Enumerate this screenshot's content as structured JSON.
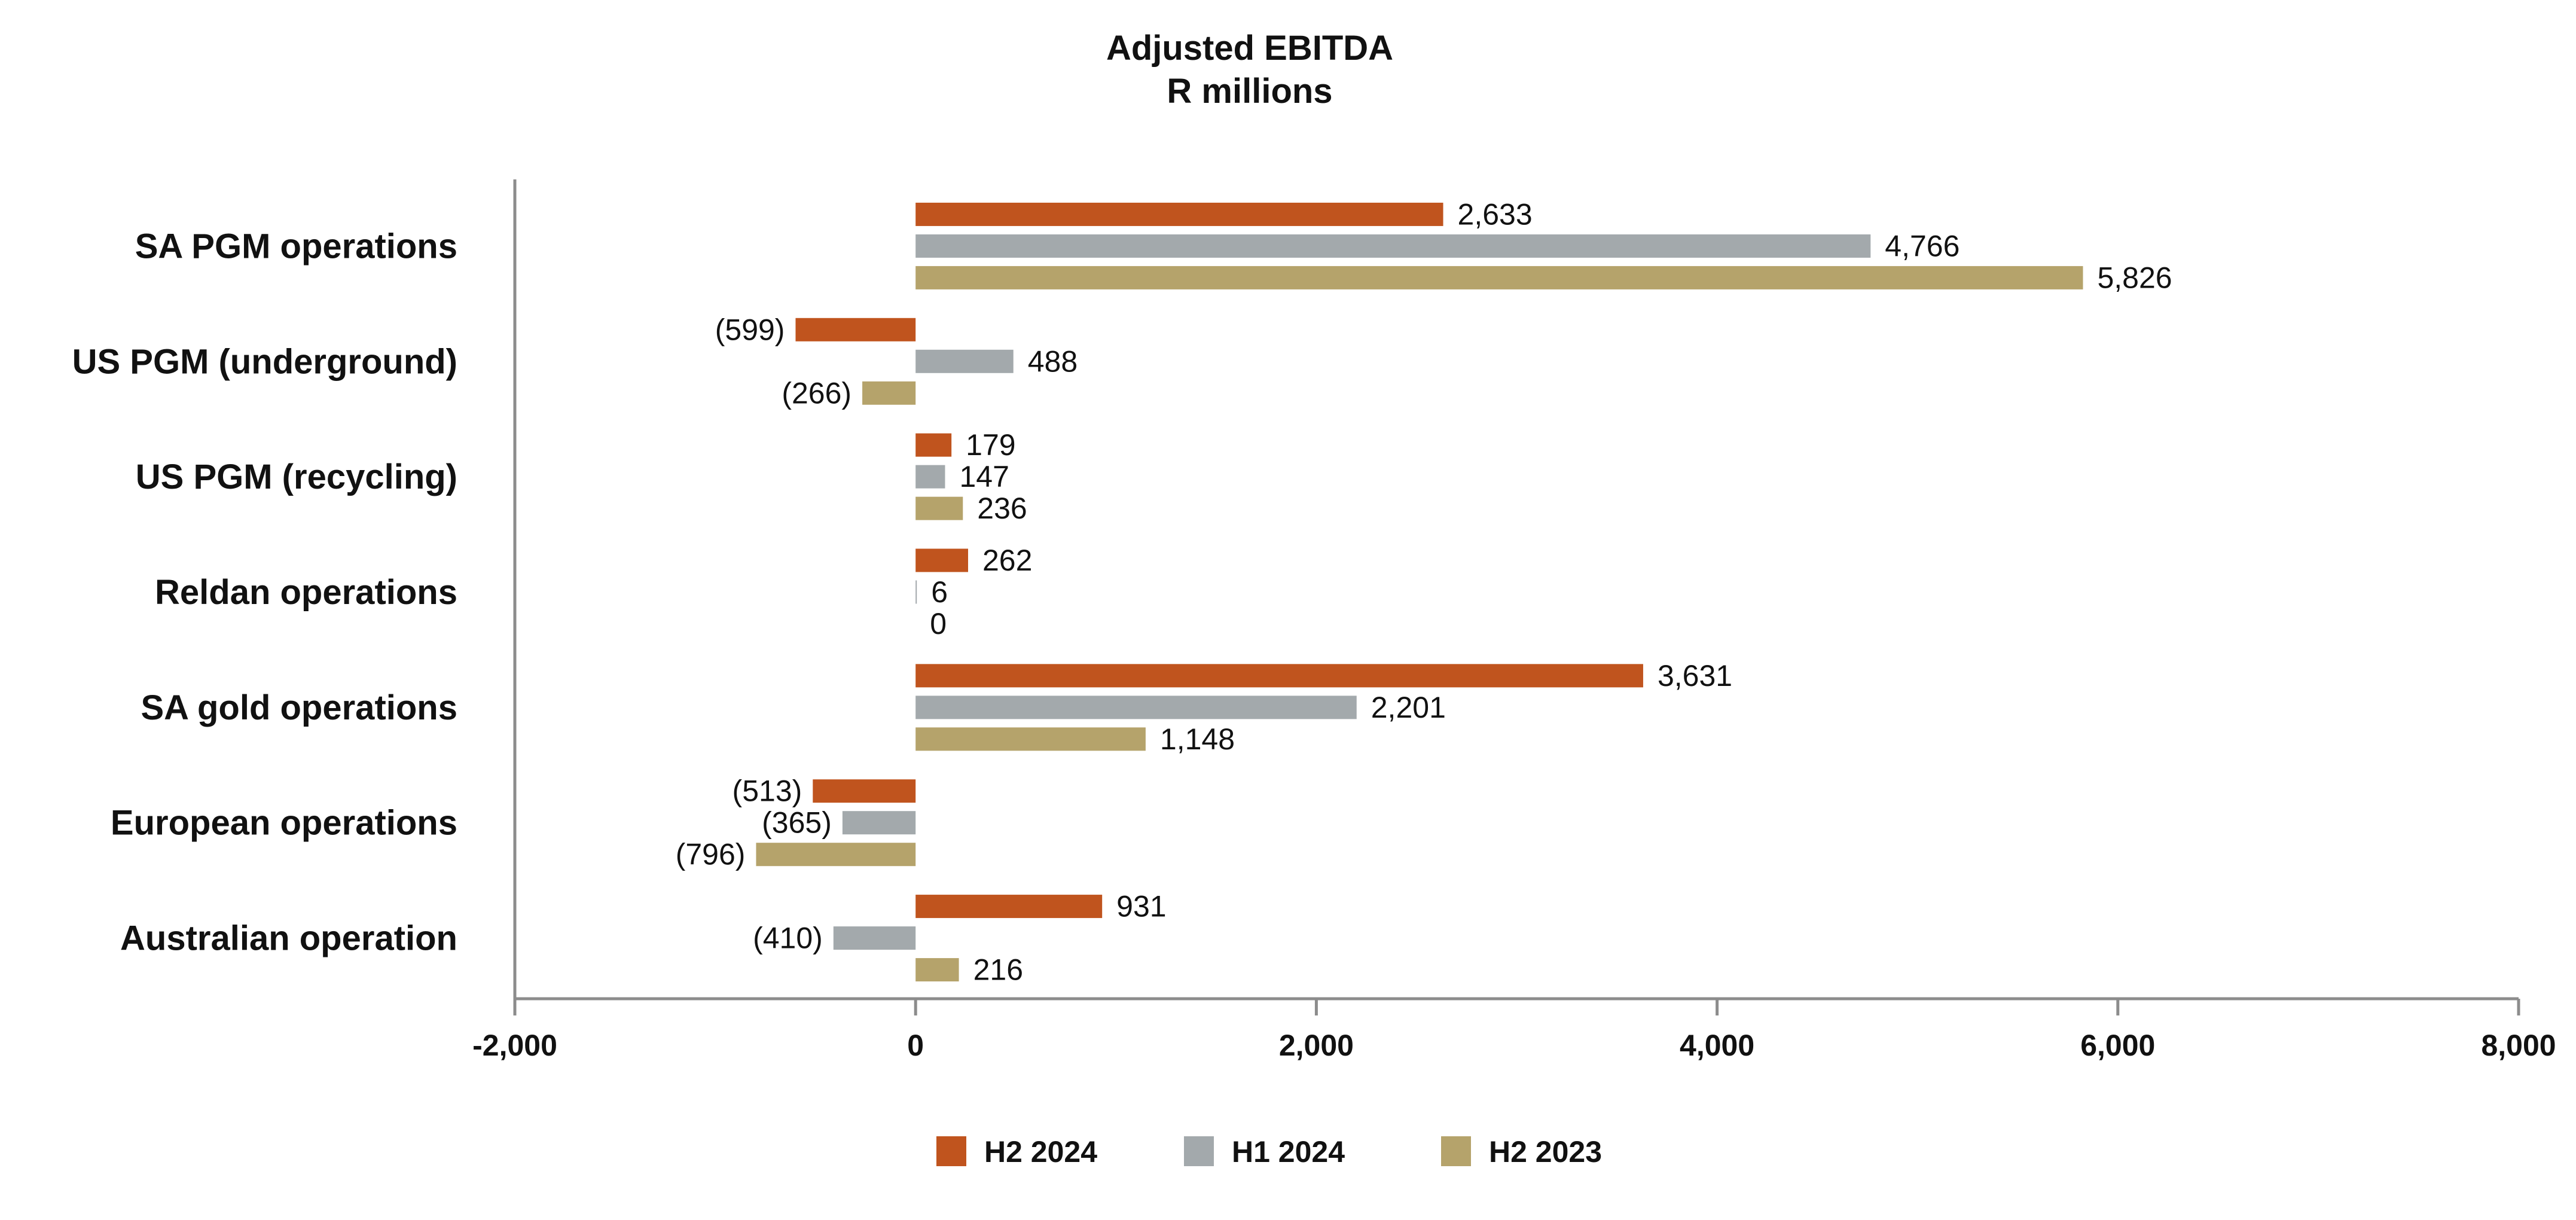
{
  "chart_data": {
    "type": "bar",
    "orientation": "horizontal",
    "title": "Adjusted EBITDA",
    "subtitle": "R millions",
    "xlabel": "",
    "ylabel": "",
    "xlim": [
      -2000,
      8000
    ],
    "x_ticks": [
      -2000,
      0,
      2000,
      4000,
      6000,
      8000
    ],
    "x_tick_labels": [
      "-2,000",
      "0",
      "2,000",
      "4,000",
      "6,000",
      "8,000"
    ],
    "grid": false,
    "legend_position": "bottom",
    "categories": [
      "SA PGM operations",
      "US PGM (underground)",
      "US PGM (recycling)",
      "Reldan operations",
      "SA gold operations",
      "European operations",
      "Australian operation"
    ],
    "series": [
      {
        "name": "H2 2024",
        "color": "#C0541E",
        "values": [
          2633,
          -599,
          179,
          262,
          3631,
          -513,
          931
        ],
        "labels": [
          "2,633",
          "(599)",
          "179",
          "262",
          "3,631",
          "(513)",
          "931"
        ]
      },
      {
        "name": "H1 2024",
        "color": "#A3A9AC",
        "values": [
          4766,
          488,
          147,
          6,
          2201,
          -365,
          -410
        ],
        "labels": [
          "4,766",
          "488",
          "147",
          "6",
          "2,201",
          "(365)",
          "(410)"
        ]
      },
      {
        "name": "H2 2023",
        "color": "#B5A36B",
        "values": [
          5826,
          -266,
          236,
          0,
          1148,
          -796,
          216
        ],
        "labels": [
          "5,826",
          "(266)",
          "236",
          "0",
          "1,148",
          "(796)",
          "216"
        ]
      }
    ]
  }
}
